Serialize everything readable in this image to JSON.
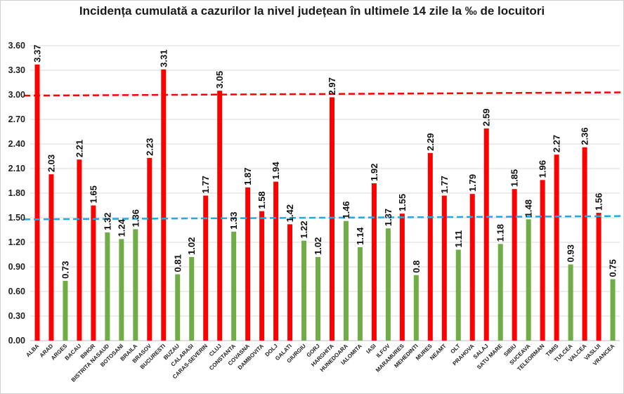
{
  "title": "Incidența cumulată a cazurilor la nivel județean în ultimele 14 zile la ‰ de locuitori",
  "colors": {
    "high": "#ff0000",
    "low": "#70ad47",
    "upper_line": "#ff0000",
    "lower_line": "#1fa9e6",
    "grid": "#d9d9d9"
  },
  "chart_data": {
    "type": "bar",
    "title": "Incidența cumulată a cazurilor la nivel județean în ultimele 14 zile la ‰ de locuitori",
    "xlabel": "",
    "ylabel": "",
    "ylim": [
      0,
      3.6
    ],
    "yticks": [
      "0.00",
      "0.30",
      "0.60",
      "0.90",
      "1.20",
      "1.50",
      "1.80",
      "2.10",
      "2.40",
      "2.70",
      "3.00",
      "3.30",
      "3.60"
    ],
    "grid": true,
    "categories": [
      "ALBA",
      "ARAD",
      "ARGES",
      "BACAU",
      "BIHOR",
      "BISTRITA NASAUD",
      "BOTOSANI",
      "BRAILA",
      "BRASOV",
      "BUCURESTI",
      "BUZAU",
      "CALARASI",
      "CARAS-SEVERIN",
      "CLUJ",
      "CONSTANTA",
      "COVASNA",
      "DAMBOVITA",
      "DOLJ",
      "GALATI",
      "GIURGIU",
      "GORJ",
      "HARGHITA",
      "HUNEDOARA",
      "IALOMITA",
      "IASI",
      "ILFOV",
      "MARAMURES",
      "MEHEDINTI",
      "MURES",
      "NEAMT",
      "OLT",
      "PRAHOVA",
      "SALAJ",
      "SATU MARE",
      "SIBIU",
      "SUCEAVA",
      "TELEORMAN",
      "TIMIS",
      "TULCEA",
      "VALCEA",
      "VASLUI",
      "VRANCEA"
    ],
    "values": [
      3.37,
      2.03,
      0.73,
      2.21,
      1.65,
      1.32,
      1.24,
      1.36,
      2.23,
      3.31,
      0.81,
      1.02,
      1.77,
      3.05,
      1.33,
      1.87,
      1.58,
      1.94,
      1.42,
      1.22,
      1.02,
      2.97,
      1.46,
      1.14,
      1.92,
      1.37,
      1.55,
      0.8,
      2.29,
      1.77,
      1.11,
      1.79,
      2.59,
      1.18,
      1.85,
      1.48,
      1.96,
      2.27,
      0.93,
      2.36,
      1.56,
      0.75
    ],
    "value_labels": [
      "3.37",
      "2.03",
      "0.73",
      "2.21",
      "1.65",
      "1.32",
      "1.24",
      "1.36",
      "2.23",
      "3.31",
      "0.81",
      "1.02",
      "1.77",
      "3.05",
      "1.33",
      "1.87",
      "1.58",
      "1.94",
      "1.42",
      "1.22",
      "1.02",
      "2.97",
      "1.46",
      "1.14",
      "1.92",
      "1.37",
      "1.55",
      "0.8",
      "2.29",
      "1.77",
      "1.11",
      "1.79",
      "2.59",
      "1.18",
      "1.85",
      "1.48",
      "1.96",
      "2.27",
      "0.93",
      "2.36",
      "1.56",
      "0.75"
    ],
    "bar_colors": [
      "high",
      "high",
      "low",
      "high",
      "high",
      "low",
      "low",
      "low",
      "high",
      "high",
      "low",
      "low",
      "high",
      "high",
      "low",
      "high",
      "high",
      "high",
      "high",
      "low",
      "low",
      "high",
      "low",
      "low",
      "high",
      "low",
      "high",
      "low",
      "high",
      "high",
      "low",
      "high",
      "high",
      "low",
      "high",
      "low",
      "high",
      "high",
      "low",
      "high",
      "high",
      "low"
    ],
    "threshold_lines": [
      {
        "style": "dashed",
        "color": "upper_line",
        "start_value": 2.99,
        "end_value": 3.03
      },
      {
        "style": "dashed",
        "color": "lower_line",
        "start_value": 1.48,
        "end_value": 1.52
      }
    ]
  }
}
